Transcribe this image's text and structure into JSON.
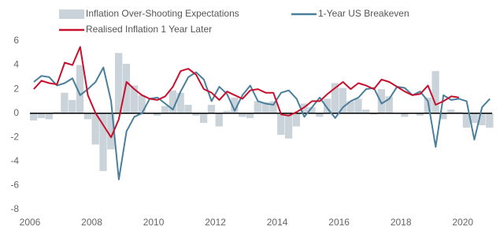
{
  "chart_data": {
    "type": "bar_line",
    "x": [
      2006.0,
      2006.25,
      2006.5,
      2006.75,
      2007.0,
      2007.25,
      2007.5,
      2007.75,
      2008.0,
      2008.25,
      2008.5,
      2008.75,
      2009.0,
      2009.25,
      2009.5,
      2009.75,
      2010.0,
      2010.25,
      2010.5,
      2010.75,
      2011.0,
      2011.25,
      2011.5,
      2011.75,
      2012.0,
      2012.25,
      2012.5,
      2012.75,
      2013.0,
      2013.25,
      2013.5,
      2013.75,
      2014.0,
      2014.25,
      2014.5,
      2014.75,
      2015.0,
      2015.25,
      2015.5,
      2015.75,
      2016.0,
      2016.25,
      2016.5,
      2016.75,
      2017.0,
      2017.25,
      2017.5,
      2017.75,
      2018.0,
      2018.25,
      2018.5,
      2018.75,
      2019.0,
      2019.25,
      2019.5,
      2019.75,
      2020.0,
      2020.25,
      2020.5,
      2020.75
    ],
    "series": [
      {
        "name": "Inflation Over-Shooting Expectations",
        "kind": "bar",
        "color": "#c9d3d9",
        "values": [
          -0.6,
          -0.4,
          -0.5,
          0.1,
          1.7,
          1.1,
          4.0,
          -0.5,
          -2.6,
          -4.8,
          -3.0,
          5.0,
          4.1,
          2.3,
          1.5,
          0.0,
          -0.2,
          0.6,
          1.9,
          1.7,
          0.7,
          -0.2,
          -0.8,
          0.7,
          -1.1,
          0.2,
          1.3,
          -0.3,
          -0.4,
          1.0,
          0.9,
          1.0,
          -1.8,
          -2.1,
          -1.1,
          0.8,
          0.5,
          -0.3,
          1.2,
          2.5,
          2.1,
          1.0,
          1.2,
          0.3,
          -0.1,
          2.0,
          1.4,
          0.0,
          -0.3,
          0.0,
          -0.2,
          1.3,
          3.5,
          -0.5,
          0.3,
          0.1,
          -1.2,
          -0.8,
          -1.0,
          -1.2
        ]
      },
      {
        "name": "1-Year US Breakeven",
        "kind": "line",
        "color": "#4a7f9c",
        "values": [
          2.6,
          3.1,
          3.0,
          2.3,
          2.5,
          2.9,
          1.5,
          2.0,
          2.6,
          3.8,
          1.0,
          -5.5,
          -1.5,
          -0.3,
          0.0,
          1.2,
          1.3,
          0.8,
          0.3,
          1.8,
          3.0,
          3.4,
          2.8,
          1.0,
          2.2,
          1.6,
          0.2,
          1.5,
          2.3,
          1.0,
          0.8,
          0.7,
          1.7,
          1.9,
          1.2,
          -0.3,
          0.5,
          1.3,
          0.4,
          -0.4,
          0.5,
          1.0,
          1.3,
          2.0,
          2.1,
          0.8,
          1.2,
          2.2,
          2.1,
          1.5,
          1.8,
          1.0,
          -2.8,
          1.5,
          1.1,
          1.2,
          1.0,
          -2.2,
          0.5,
          1.2
        ]
      },
      {
        "name": "Realised Inflation 1 Year Later",
        "kind": "line",
        "color": "#c8102e",
        "values": [
          2.0,
          2.7,
          2.5,
          2.4,
          4.2,
          4.0,
          5.5,
          1.5,
          0.0,
          -1.0,
          -2.0,
          -0.5,
          2.6,
          2.0,
          1.5,
          1.2,
          1.1,
          1.4,
          2.2,
          3.5,
          3.7,
          3.2,
          2.0,
          1.7,
          1.1,
          1.8,
          1.5,
          1.2,
          1.9,
          2.0,
          1.7,
          1.7,
          -0.1,
          -0.2,
          0.1,
          0.5,
          1.0,
          1.0,
          1.6,
          2.1,
          2.6,
          2.0,
          2.5,
          2.3,
          2.0,
          2.8,
          2.6,
          2.2,
          1.8,
          1.5,
          1.6,
          2.3,
          0.7,
          1.0,
          1.4,
          1.3,
          null,
          null,
          null,
          null
        ]
      }
    ],
    "xlim": [
      2006,
      2020.95
    ],
    "xticks": [
      2006,
      2008,
      2010,
      2012,
      2014,
      2016,
      2018,
      2020
    ],
    "ylim": [
      -8,
      6
    ],
    "yticks": [
      -8,
      -6,
      -4,
      -2,
      0,
      2,
      4,
      6
    ],
    "zero_line": true
  }
}
